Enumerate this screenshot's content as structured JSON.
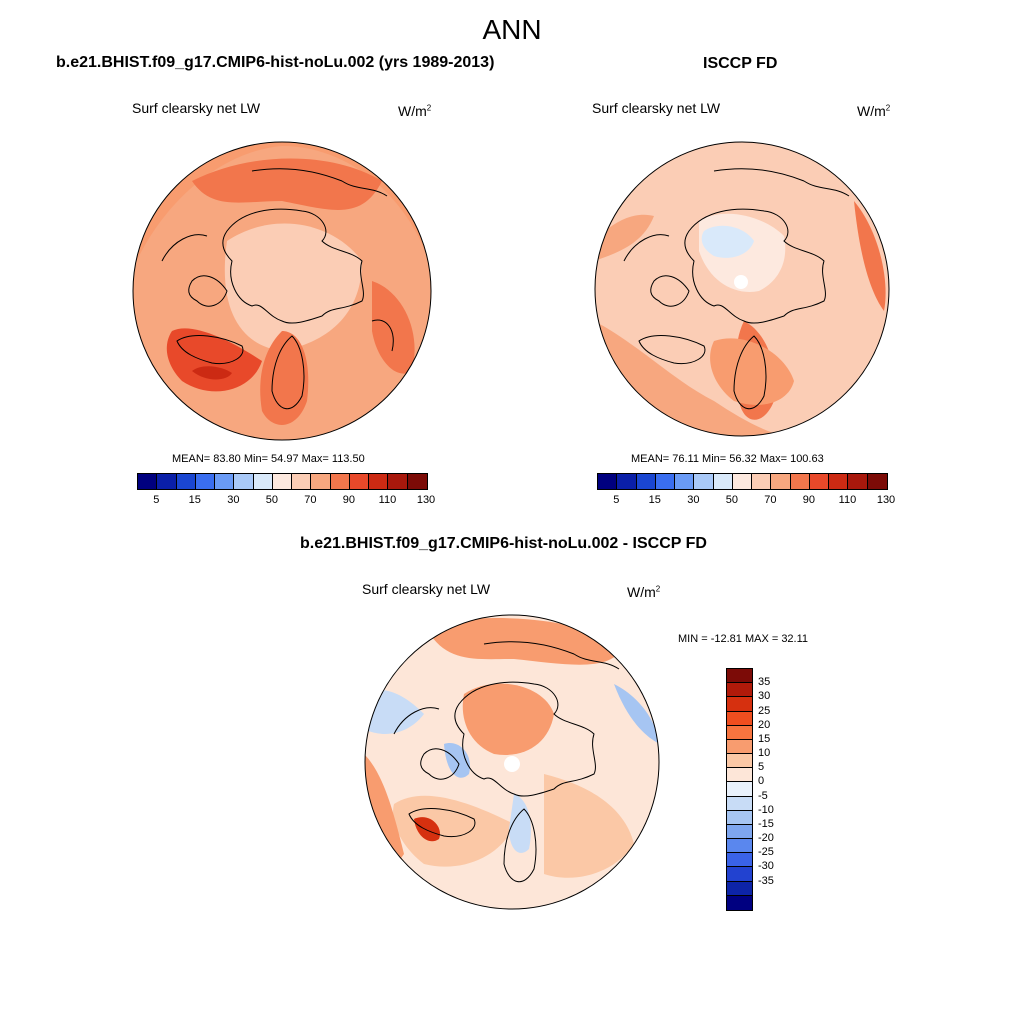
{
  "figure": {
    "title": "ANN"
  },
  "panel1": {
    "case": "b.e21.BHIST.f09_g17.CMIP6-hist-noLu.002 (yrs 1989-2013)",
    "var": "Surf clearsky net LW",
    "units_base": "W/m",
    "units_exp": "2",
    "stats": "MEAN=  83.80  Min=  54.97  Max= 113.50"
  },
  "panel2": {
    "case": "ISCCP FD",
    "var": "Surf clearsky net LW",
    "units_base": "W/m",
    "units_exp": "2",
    "stats": "MEAN=  76.11  Min=  56.32  Max= 100.63"
  },
  "panel3": {
    "case": "b.e21.BHIST.f09_g17.CMIP6-hist-noLu.002 - ISCCP FD",
    "var": "Surf clearsky net LW",
    "units_base": "W/m",
    "units_exp": "2",
    "stats": "MIN = -12.81 MAX =  32.11"
  },
  "colorbar_abs": {
    "colors": [
      "#00007f",
      "#0a1fa8",
      "#1a46d1",
      "#3a6ef0",
      "#6a9bf6",
      "#a9c9f8",
      "#d9e9fa",
      "#fde9df",
      "#fbcdb5",
      "#f7a77f",
      "#f2764c",
      "#e8492a",
      "#cc2a13",
      "#a8180c",
      "#7c0b07"
    ],
    "labels": [
      "5",
      "15",
      "30",
      "50",
      "70",
      "90",
      "110",
      "130"
    ]
  },
  "colorbar_diff": {
    "colors": [
      "#7c0b07",
      "#b11a0a",
      "#d6300f",
      "#f04e1f",
      "#f7743f",
      "#f89c6f",
      "#fbc8a6",
      "#fde6d8",
      "#e9f1fb",
      "#c8dcf6",
      "#a6c5f2",
      "#7ea6ef",
      "#5a87ee",
      "#3a63e8",
      "#2242d0",
      "#0d24a8",
      "#000080"
    ],
    "labels": [
      "35",
      "30",
      "25",
      "20",
      "15",
      "10",
      "5",
      "0",
      "-5",
      "-10",
      "-15",
      "-20",
      "-25",
      "-30",
      "-35"
    ]
  }
}
